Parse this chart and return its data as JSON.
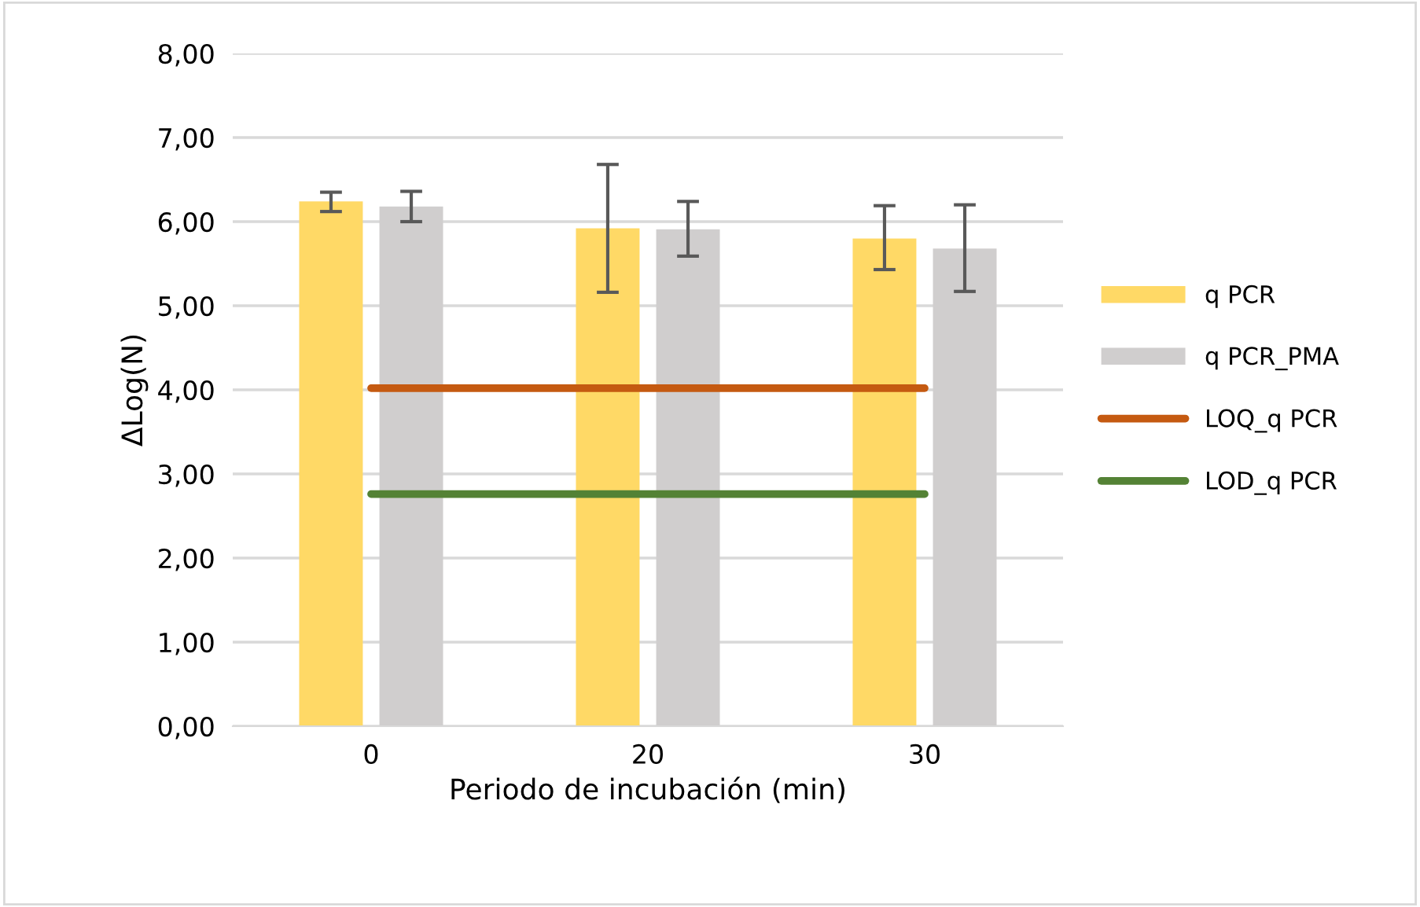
{
  "chart_data": {
    "type": "bar",
    "xlabel": "Periodo de incubación (min)",
    "ylabel": "ΔLog(N)",
    "categories": [
      "0",
      "20",
      "30"
    ],
    "series": [
      {
        "name": "q PCR",
        "color": "#ffd966",
        "values": [
          6.24,
          5.92,
          5.8
        ],
        "errors": [
          [
            6.12,
            6.35
          ],
          [
            5.16,
            6.68
          ],
          [
            5.43,
            6.19
          ]
        ]
      },
      {
        "name": "q PCR_PMA",
        "color": "#d0cece",
        "values": [
          6.18,
          5.91,
          5.68
        ],
        "errors": [
          [
            6.0,
            6.36
          ],
          [
            5.59,
            6.24
          ],
          [
            5.17,
            6.2
          ]
        ]
      },
      {
        "name": "LOQ_q PCR",
        "type": "line",
        "color": "#c55a11",
        "values": [
          4.02,
          4.02,
          4.02
        ]
      },
      {
        "name": "LOD_q PCR",
        "type": "line",
        "color": "#548235",
        "values": [
          2.76,
          2.76,
          2.76
        ]
      }
    ],
    "ylim": [
      0,
      8
    ],
    "yticks": [
      {
        "value": 0,
        "label": "0,00"
      },
      {
        "value": 1,
        "label": "1,00"
      },
      {
        "value": 2,
        "label": "2,00"
      },
      {
        "value": 3,
        "label": "3,00"
      },
      {
        "value": 4,
        "label": "4,00"
      },
      {
        "value": 5,
        "label": "5,00"
      },
      {
        "value": 6,
        "label": "6,00"
      },
      {
        "value": 7,
        "label": "7,00"
      },
      {
        "value": 8,
        "label": "8,00"
      }
    ],
    "grid": "y",
    "legend": "right"
  }
}
